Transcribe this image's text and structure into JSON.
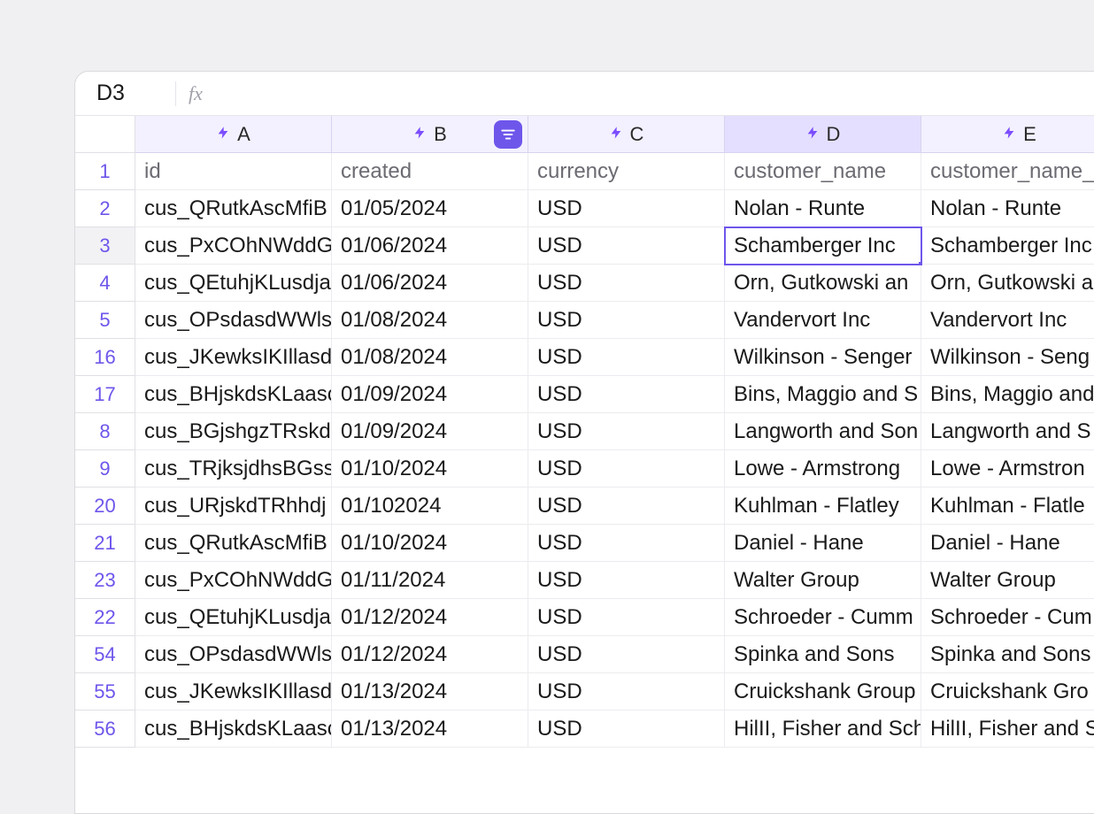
{
  "formula_bar": {
    "cell_ref": "D3",
    "fx_label": "fx",
    "formula": ""
  },
  "columns": [
    {
      "id": "A",
      "label": "A",
      "has_bolt": true,
      "has_filter": false,
      "selected": false
    },
    {
      "id": "B",
      "label": "B",
      "has_bolt": true,
      "has_filter": true,
      "selected": false
    },
    {
      "id": "C",
      "label": "C",
      "has_bolt": true,
      "has_filter": false,
      "selected": false
    },
    {
      "id": "D",
      "label": "D",
      "has_bolt": true,
      "has_filter": false,
      "selected": true
    },
    {
      "id": "E",
      "label": "E",
      "has_bolt": true,
      "has_filter": false,
      "selected": false
    }
  ],
  "selected_cell": {
    "row": 3,
    "col": "D"
  },
  "header_row": {
    "row_num": 1,
    "cells": [
      "id",
      "created",
      "currency",
      "customer_name",
      "customer_name_"
    ]
  },
  "rows": [
    {
      "row_num": 2,
      "cells": [
        "cus_QRutkAscMfiB",
        "01/05/2024",
        "USD",
        "Nolan - Runte",
        "Nolan - Runte"
      ]
    },
    {
      "row_num": 3,
      "cells": [
        "cus_PxCOhNWddGs",
        "01/06/2024",
        "USD",
        "Schamberger Inc",
        "Schamberger Inc"
      ]
    },
    {
      "row_num": 4,
      "cells": [
        "cus_QEtuhjKLusdja",
        "01/06/2024",
        "USD",
        "Orn, Gutkowski an",
        "Orn, Gutkowski a"
      ]
    },
    {
      "row_num": 5,
      "cells": [
        "cus_OPsdasdWWls",
        "01/08/2024",
        "USD",
        "Vandervort Inc",
        "Vandervort Inc"
      ]
    },
    {
      "row_num": 16,
      "cells": [
        "cus_JKewksIKIllasd",
        "01/08/2024",
        "USD",
        "Wilkinson - Senger",
        "Wilkinson - Seng"
      ]
    },
    {
      "row_num": 17,
      "cells": [
        "cus_BHjskdsKLaasc",
        "01/09/2024",
        "USD",
        "Bins, Maggio and S",
        "Bins, Maggio and"
      ]
    },
    {
      "row_num": 8,
      "cells": [
        "cus_BGjshgzTRskdk",
        "01/09/2024",
        "USD",
        "Langworth and Son",
        "Langworth and S"
      ]
    },
    {
      "row_num": 9,
      "cells": [
        "cus_TRjksjdhsBGss",
        "01/10/2024",
        "USD",
        "Lowe - Armstrong",
        "Lowe - Armstron"
      ]
    },
    {
      "row_num": 20,
      "cells": [
        "cus_URjskdTRhhdj",
        "01/102024",
        "USD",
        "Kuhlman - Flatley",
        "Kuhlman - Flatle"
      ]
    },
    {
      "row_num": 21,
      "cells": [
        "cus_QRutkAscMfiB",
        "01/10/2024",
        "USD",
        "Daniel - Hane",
        "Daniel - Hane"
      ]
    },
    {
      "row_num": 23,
      "cells": [
        "cus_PxCOhNWddGs",
        "01/11/2024",
        "USD",
        "Walter Group",
        "Walter Group"
      ]
    },
    {
      "row_num": 22,
      "cells": [
        "cus_QEtuhjKLusdja",
        "01/12/2024",
        "USD",
        "Schroeder - Cumm",
        "Schroeder - Cum"
      ]
    },
    {
      "row_num": 54,
      "cells": [
        "cus_OPsdasdWWls",
        "01/12/2024",
        "USD",
        "Spinka and Sons",
        "Spinka and Sons"
      ]
    },
    {
      "row_num": 55,
      "cells": [
        "cus_JKewksIKIllasd",
        "01/13/2024",
        "USD",
        "Cruickshank Group",
        "Cruickshank Gro"
      ]
    },
    {
      "row_num": 56,
      "cells": [
        "cus_BHjskdsKLaasc",
        "01/13/2024",
        "USD",
        "HilII, Fisher and Sch",
        "HilII, Fisher and S"
      ]
    }
  ],
  "colors": {
    "accent": "#6e56eb",
    "header_bg": "#f3f1ff",
    "header_bg_selected": "#e4dfff",
    "bolt": "#7c4dff",
    "row_num": "#6e56eb",
    "page_bg": "#f0f0f2",
    "window_bg": "#ffffff",
    "border": "#e0e0e5"
  }
}
